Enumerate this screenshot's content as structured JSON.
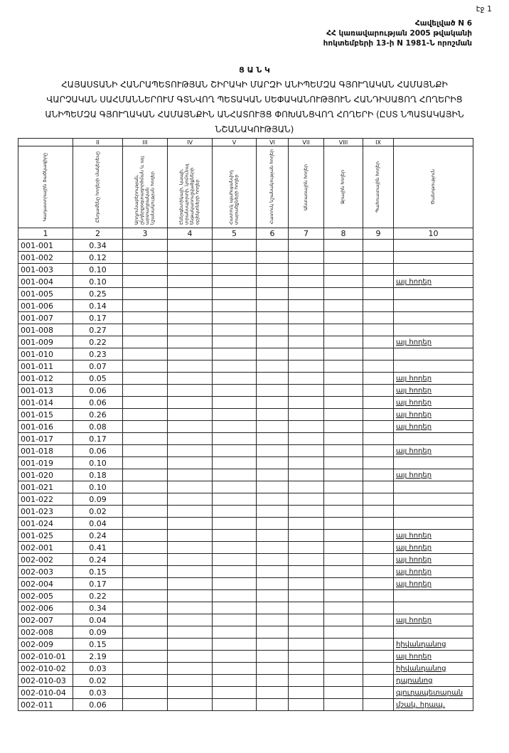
{
  "page_number": "էջ 1",
  "header": {
    "lines": [
      "Հավելված N 6",
      "ՀՀ կառավարության 2005 թվականի",
      "հոկտեմբերի 13-ի N 1981-Ն որոշման"
    ]
  },
  "title": {
    "heading": "Ց Ա Ն Կ",
    "lines": [
      "ՀԱՅԱՍՏԱՆԻ ՀԱՆՐԱՊԵՏՈՒԹՅԱՆ ՇԻՐԱԿԻ ՄԱՐԶԻ ԱՆԻՊԵՄԶԱ ԳՅՈՒՂԱԿԱՆ ՀԱՄԱՅՆՔԻ",
      "ՎԱՐՉԱԿԱՆ ՍԱՀՄԱՆՆԵՐՈՒՄ ԳՏՆՎՈՂ ՊԵՏԱԿԱՆ ՍԵՓԱԿԱՆՈՒԹՅՈՒՆ ՀԱՆԴԻՍԱՑՈՂ ՀՈՂԵՐԻՑ",
      "ԱՆԻՊԵՄԶԱ ԳՅՈՒՂԱԿԱՆ ՀԱՄԱՅՆՔԻՆ ԱՆՀԱՏՈՒՅՑ ՓՈԽԱՆՑՎՈՂ ՀՈՂԵՐԻ (ԸՍՏ ՆՊԱՏԱԿԱՅԻՆ",
      "ՆՇԱՆԱԿՈՒԹՅԱՆ)"
    ]
  },
  "table": {
    "columns": [
      {
        "header": "Կադաստրային ծածկագիրը",
        "number": "1"
      },
      {
        "roman": "II",
        "header": "Ընդամենը հողերի մակերեսը",
        "number": "2"
      },
      {
        "roman": "III",
        "header": "Արդյունաբերության, ընդերքօգտագործման և այլ արտադրական նշանակության հողեր",
        "number": "3"
      },
      {
        "roman": "IV",
        "header": "Էներգետիկայի, կապի, տրանսպորտի, կոմունալ ենթակառուցվածքների օբյեկտների հողեր",
        "number": "4"
      },
      {
        "roman": "V",
        "header": "Հատուկ պահպանվող տարածքների հողեր",
        "number": "5"
      },
      {
        "roman": "VI",
        "header": "Հատուկ նշանակության հողեր",
        "number": "6"
      },
      {
        "roman": "VII",
        "header": "Անտառային հողեր",
        "number": "7"
      },
      {
        "roman": "VIII",
        "header": "Ջրային հողեր",
        "number": "8"
      },
      {
        "roman": "IX",
        "header": "Պահուստային հողեր",
        "number": "9"
      },
      {
        "header": "Ծանոթություն",
        "number": "10"
      }
    ],
    "rows": [
      {
        "code": "001-001",
        "area": "0.34"
      },
      {
        "code": "001-002",
        "area": "0.12"
      },
      {
        "code": "001-003",
        "area": "0.10"
      },
      {
        "code": "001-004",
        "area": "0.10",
        "note": "այլ հողեր"
      },
      {
        "code": "001-005",
        "area": "0.25"
      },
      {
        "code": "001-006",
        "area": "0.14"
      },
      {
        "code": "001-007",
        "area": "0.17"
      },
      {
        "code": "001-008",
        "area": "0.27"
      },
      {
        "code": "001-009",
        "area": "0.22",
        "note": "այլ հողեր"
      },
      {
        "code": "001-010",
        "area": "0.23"
      },
      {
        "code": "001-011",
        "area": "0.07"
      },
      {
        "code": "001-012",
        "area": "0.05",
        "note": "այլ հողեր"
      },
      {
        "code": "001-013",
        "area": "0.06",
        "note": "այլ հողեր"
      },
      {
        "code": "001-014",
        "area": "0.06",
        "note": "այլ հողեր"
      },
      {
        "code": "001-015",
        "area": "0.26",
        "note": "այլ հողեր"
      },
      {
        "code": "001-016",
        "area": "0.08",
        "note": "այլ հողեր"
      },
      {
        "code": "001-017",
        "area": "0.17"
      },
      {
        "code": "001-018",
        "area": "0.06",
        "note": "այլ հողեր"
      },
      {
        "code": "001-019",
        "area": "0.10"
      },
      {
        "code": "001-020",
        "area": "0.18",
        "note": "այլ հողեր"
      },
      {
        "code": "001-021",
        "area": "0.10"
      },
      {
        "code": "001-022",
        "area": "0.09"
      },
      {
        "code": "001-023",
        "area": "0.02"
      },
      {
        "code": "001-024",
        "area": "0.04"
      },
      {
        "code": "001-025",
        "area": "0.24",
        "note": "այլ հողեր"
      },
      {
        "code": "002-001",
        "area": "0.41",
        "note": "այլ հողեր"
      },
      {
        "code": "002-002",
        "area": "0.24",
        "note": "այլ հողեր"
      },
      {
        "code": "002-003",
        "area": "0.15",
        "note": "այլ հողեր"
      },
      {
        "code": "002-004",
        "area": "0.17",
        "note": "այլ հողեր"
      },
      {
        "code": "002-005",
        "area": "0.22"
      },
      {
        "code": "002-006",
        "area": "0.34"
      },
      {
        "code": "002-007",
        "area": "0.04",
        "note": "այլ հողեր"
      },
      {
        "code": "002-008",
        "area": "0.09"
      },
      {
        "code": "002-009",
        "area": "0.15",
        "note": "հիվանդանոց"
      },
      {
        "code": "002-010-01",
        "area": "2.19",
        "note": "այլ հողեր"
      },
      {
        "code": "002-010-02",
        "area": "0.03",
        "note": "հիվանդանոց"
      },
      {
        "code": "002-010-03",
        "area": "0.02",
        "note": "դպրանոց"
      },
      {
        "code": "002-010-04",
        "area": "0.03",
        "note": "գյուղապետարան"
      },
      {
        "code": "002-011",
        "area": "0.06",
        "note": "մշակ. հրապ."
      }
    ]
  }
}
